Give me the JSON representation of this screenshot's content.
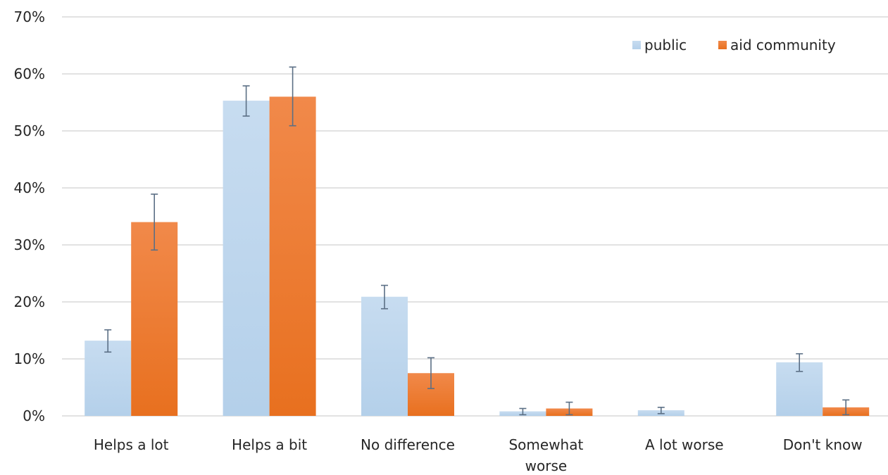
{
  "chart_data": {
    "type": "bar",
    "categories": [
      [
        "Helps a lot"
      ],
      [
        "Helps a bit"
      ],
      [
        "No difference"
      ],
      [
        "Somewhat",
        "worse"
      ],
      [
        "A lot worse"
      ],
      [
        "Don't know"
      ]
    ],
    "series": [
      {
        "name": "public",
        "color": "#bdd7ee",
        "values": [
          13.2,
          55.3,
          20.9,
          0.8,
          1.0,
          9.4
        ],
        "error_low": [
          11.2,
          52.6,
          18.8,
          0.2,
          0.4,
          7.8
        ],
        "error_high": [
          15.1,
          57.9,
          22.9,
          1.3,
          1.5,
          10.9
        ]
      },
      {
        "name": "aid community",
        "color": "#ed7d31",
        "values": [
          34.0,
          56.0,
          7.5,
          1.3,
          0.0,
          1.5
        ],
        "error_low": [
          29.1,
          50.9,
          4.8,
          0.2,
          0.0,
          0.2
        ],
        "error_high": [
          38.9,
          61.2,
          10.2,
          2.4,
          0.0,
          2.8
        ]
      }
    ],
    "y_ticks": [
      "0%",
      "10%",
      "20%",
      "30%",
      "40%",
      "50%",
      "60%",
      "70%"
    ],
    "ylim": [
      0,
      70
    ],
    "grid": true,
    "legend_position": "top-right"
  }
}
